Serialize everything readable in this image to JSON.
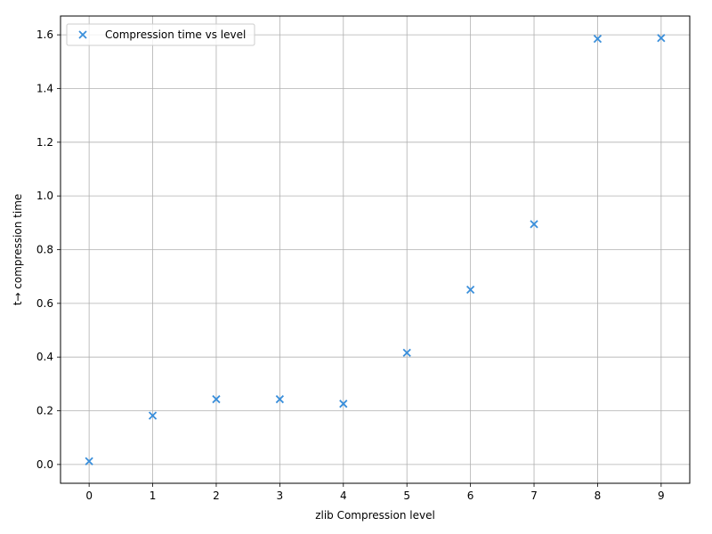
{
  "chart_data": {
    "type": "scatter",
    "xlabel": "zlib Compression level",
    "ylabel": "t→  compression time",
    "xlim": [
      -0.45,
      9.45
    ],
    "ylim": [
      -0.07,
      1.67
    ],
    "x_ticks": [
      0,
      1,
      2,
      3,
      4,
      5,
      6,
      7,
      8,
      9
    ],
    "x_tick_labels": [
      "0",
      "1",
      "2",
      "3",
      "4",
      "5",
      "6",
      "7",
      "8",
      "9"
    ],
    "y_ticks": [
      0.0,
      0.2,
      0.4,
      0.6,
      0.8,
      1.0,
      1.2,
      1.4,
      1.6
    ],
    "y_tick_labels": [
      "0.0",
      "0.2",
      "0.4",
      "0.6",
      "0.8",
      "1.0",
      "1.2",
      "1.4",
      "1.6"
    ],
    "grid": true,
    "legend_position": "top-left",
    "series": [
      {
        "name": "Compression time vs level",
        "marker": "x",
        "color": "#3a8fdb",
        "x": [
          0,
          1,
          2,
          3,
          4,
          5,
          6,
          7,
          8,
          9
        ],
        "y": [
          0.012,
          0.182,
          0.243,
          0.243,
          0.226,
          0.416,
          0.651,
          0.895,
          1.585,
          1.588
        ]
      }
    ]
  }
}
